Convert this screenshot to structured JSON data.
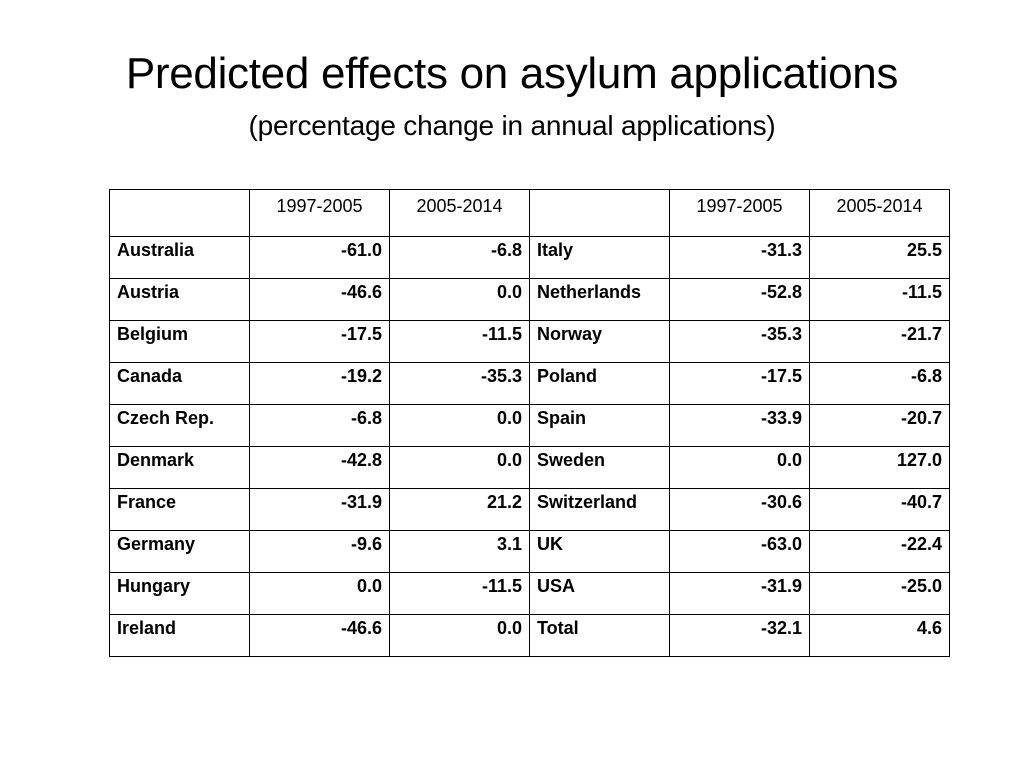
{
  "slide": {
    "title": "Predicted effects on asylum applications",
    "subtitle": "(percentage change in annual applications)"
  },
  "table": {
    "headers": [
      "",
      "1997-2005",
      "2005-2014",
      "",
      "1997-2005",
      "2005-2014"
    ],
    "rows": [
      [
        "Australia",
        "-61.0",
        "-6.8",
        "Italy",
        "-31.3",
        "25.5"
      ],
      [
        "Austria",
        "-46.6",
        "0.0",
        "Netherlands",
        "-52.8",
        "-11.5"
      ],
      [
        "Belgium",
        "-17.5",
        "-11.5",
        "Norway",
        "-35.3",
        "-21.7"
      ],
      [
        "Canada",
        "-19.2",
        "-35.3",
        "Poland",
        "-17.5",
        "-6.8"
      ],
      [
        "Czech Rep.",
        "-6.8",
        "0.0",
        "Spain",
        "-33.9",
        "-20.7"
      ],
      [
        "Denmark",
        "-42.8",
        "0.0",
        "Sweden",
        "0.0",
        "127.0"
      ],
      [
        "France",
        "-31.9",
        "21.2",
        "Switzerland",
        "-30.6",
        "-40.7"
      ],
      [
        "Germany",
        "-9.6",
        "3.1",
        "UK",
        "-63.0",
        "-22.4"
      ],
      [
        "Hungary",
        "0.0",
        "-11.5",
        "USA",
        "-31.9",
        "-25.0"
      ],
      [
        "Ireland",
        "-46.6",
        "0.0",
        "Total",
        "-32.1",
        "4.6"
      ]
    ]
  }
}
